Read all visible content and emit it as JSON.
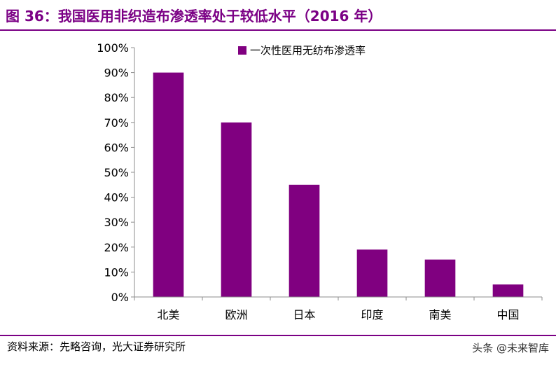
{
  "title": "图 36：我国医用非织造布渗透率处于较低水平（2016 年）",
  "source": "资料来源：先略咨询，光大证券研究所",
  "watermark": "头条 @未来智库",
  "colors": {
    "accent": "#7b0085",
    "bar": "#800080"
  },
  "chart_data": {
    "type": "bar",
    "categories": [
      "北美",
      "欧洲",
      "日本",
      "印度",
      "南美",
      "中国"
    ],
    "series": [
      {
        "name": "一次性医用无纺布渗透率",
        "values": [
          0.9,
          0.7,
          0.45,
          0.19,
          0.15,
          0.05
        ]
      }
    ],
    "yticks": [
      "0%",
      "10%",
      "20%",
      "30%",
      "40%",
      "50%",
      "60%",
      "70%",
      "80%",
      "90%",
      "100%"
    ],
    "ylim": [
      0,
      1
    ],
    "legend": "top",
    "grid": false
  }
}
